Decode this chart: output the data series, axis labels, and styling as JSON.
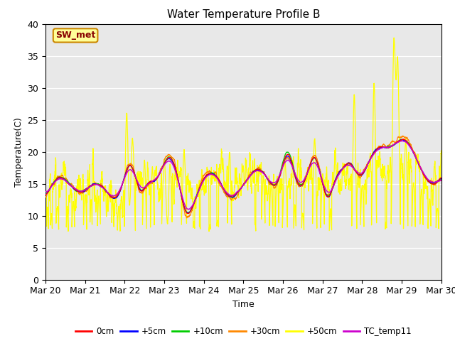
{
  "title": "Water Temperature Profile B",
  "xlabel": "Time",
  "ylabel": "Temperature(C)",
  "ylim": [
    0,
    40
  ],
  "xlim": [
    0,
    10
  ],
  "xtick_labels": [
    "Mar 20",
    "Mar 21",
    "Mar 22",
    "Mar 23",
    "Mar 24",
    "Mar 25",
    "Mar 26",
    "Mar 27",
    "Mar 28",
    "Mar 29",
    "Mar 30"
  ],
  "xtick_positions": [
    0,
    1,
    2,
    3,
    4,
    5,
    6,
    7,
    8,
    9,
    10
  ],
  "ytick_positions": [
    0,
    5,
    10,
    15,
    20,
    25,
    30,
    35,
    40
  ],
  "colors": {
    "0cm": "#ff0000",
    "+5cm": "#0000ff",
    "+10cm": "#00cc00",
    "+30cm": "#ff8800",
    "+50cm": "#ffff00",
    "TC_temp11": "#cc00cc"
  },
  "background_color": "#e8e8e8",
  "annotation_text": "SW_met",
  "annotation_bg": "#ffff99",
  "annotation_border": "#cc8800",
  "title_fontsize": 11,
  "tick_fontsize": 9,
  "label_fontsize": 9
}
